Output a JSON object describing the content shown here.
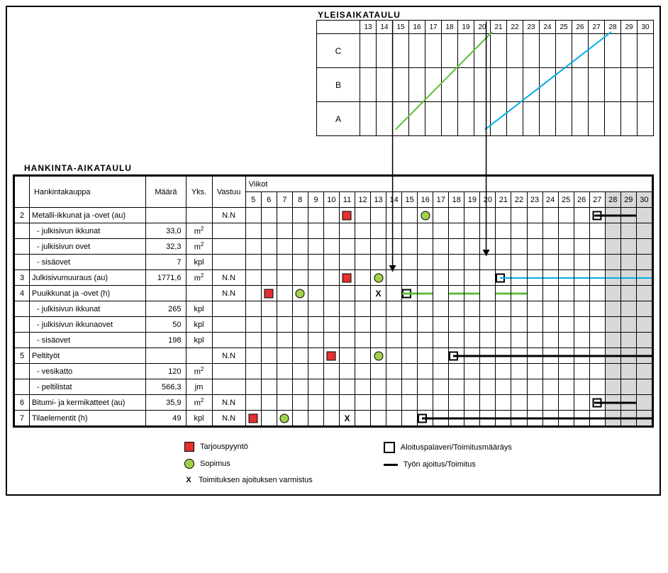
{
  "yleisaikataulu": {
    "title": "YLEISAIKATAULU",
    "weeks": [
      13,
      14,
      15,
      16,
      17,
      18,
      19,
      20,
      21,
      22,
      23,
      24,
      25,
      26,
      27,
      28,
      29,
      30
    ],
    "rows": [
      "C",
      "B",
      "A"
    ],
    "lines": [
      {
        "type": "green",
        "points": [
          [
            15.5,
            2
          ],
          [
            22,
            0
          ]
        ],
        "stroke": "#5bbf3c",
        "width": 2
      },
      {
        "type": "cyan",
        "points": [
          [
            21.5,
            2
          ],
          [
            30,
            0
          ]
        ],
        "stroke": "#00aee6",
        "width": 2
      }
    ],
    "weekStartOffset": 13
  },
  "hankinta": {
    "title": "HANKINTA-AIKATAULU",
    "headers": {
      "hankintakauppa": "Hankintakauppa",
      "maara": "Määrä",
      "yks": "Yks.",
      "vastuu": "Vastuu",
      "viikot": "Viikot"
    },
    "weeks": [
      5,
      6,
      7,
      8,
      9,
      10,
      11,
      12,
      13,
      14,
      15,
      16,
      17,
      18,
      19,
      20,
      21,
      22,
      23,
      24,
      25,
      26,
      27,
      28,
      29,
      30
    ],
    "shadedWeeks": [
      28,
      29,
      30
    ],
    "rows": [
      {
        "id": "2",
        "label": "Metalli-ikkunat ja -ovet (au)",
        "maara": "",
        "yks": "",
        "vastuu": "N.N",
        "markers": [
          {
            "wk": 11,
            "t": "red"
          },
          {
            "wk": 16,
            "t": "green"
          },
          {
            "wk": 27,
            "t": "hollow"
          }
        ],
        "bars": [
          {
            "from": 27,
            "to": 29
          }
        ]
      },
      {
        "label": "- julkisivun ikkunat",
        "maara": "33,0",
        "yks": "m2"
      },
      {
        "label": "- julkisivun ovet",
        "maara": "32,3",
        "yks": "m2"
      },
      {
        "label": "- sisäovet",
        "maara": "7",
        "yks": "kpl"
      },
      {
        "id": "3",
        "label": "Julkisivumuuraus (au)",
        "maara": "1771,6",
        "yks": "m2",
        "vastuu": "N.N",
        "markers": [
          {
            "wk": 11,
            "t": "red"
          },
          {
            "wk": 13,
            "t": "green"
          },
          {
            "wk": 21,
            "t": "hollow-left"
          }
        ],
        "cyan": [
          {
            "from": 21,
            "to": 30
          }
        ]
      },
      {
        "id": "4",
        "label": "Puuikkunat ja -ovet (h)",
        "maara": "",
        "yks": "",
        "vastuu": "N.N",
        "markers": [
          {
            "wk": 6,
            "t": "red"
          },
          {
            "wk": 8,
            "t": "green"
          },
          {
            "wk": 13,
            "t": "x"
          },
          {
            "wk": 15,
            "t": "hollow-left"
          }
        ],
        "greendash": [
          {
            "from": 15,
            "to": 16
          },
          {
            "from": 18,
            "to": 19
          },
          {
            "from": 21,
            "to": 22
          }
        ]
      },
      {
        "label": "- julkisivun ikkunat",
        "maara": "265",
        "yks": "kpl"
      },
      {
        "label": "- julkisivun ikkunaovet",
        "maara": "50",
        "yks": "kpl"
      },
      {
        "label": "- sisäovet",
        "maara": "198",
        "yks": "kpl"
      },
      {
        "id": "5",
        "label": "Peltityöt",
        "maara": "",
        "yks": "",
        "vastuu": "N.N",
        "markers": [
          {
            "wk": 10,
            "t": "red"
          },
          {
            "wk": 13,
            "t": "green"
          },
          {
            "wk": 18,
            "t": "hollow-left"
          }
        ],
        "bars": [
          {
            "from": 18,
            "to": 30
          }
        ]
      },
      {
        "label": "- vesikatto",
        "maara": "120",
        "yks": "m2"
      },
      {
        "label": "- peltilistat",
        "maara": "566,3",
        "yks": "jm"
      },
      {
        "id": "6",
        "label": "Bitumi- ja kermikatteet (au)",
        "maara": "35,9",
        "yks": "m2",
        "vastuu": "N.N",
        "markers": [
          {
            "wk": 27,
            "t": "hollow"
          }
        ],
        "bars": [
          {
            "from": 27,
            "to": 29
          }
        ]
      },
      {
        "id": "7",
        "label": "Tilaelementit (h)",
        "maara": "49",
        "yks": "kpl",
        "vastuu": "N.N",
        "markers": [
          {
            "wk": 5,
            "t": "red"
          },
          {
            "wk": 7,
            "t": "green"
          },
          {
            "wk": 11,
            "t": "x"
          },
          {
            "wk": 16,
            "t": "hollow-left"
          }
        ],
        "bars": [
          {
            "from": 16,
            "to": 30
          }
        ]
      }
    ]
  },
  "legend": {
    "tarjouspyynto": "Tarjouspyyntö",
    "sopimus": "Sopimus",
    "toimitus_varmistus": "Toimituksen ajoituksen varmistus",
    "aloituspalaveri": "Aloituspalaveri/Toimitusmääräys",
    "tyon_ajoitus": "Työn ajoitus/Toimitus"
  },
  "colors": {
    "red": "#e43030",
    "green_fill": "#a2d149",
    "green_line": "#5bbf3c",
    "cyan": "#00aee6",
    "shade": "#d8d8d8"
  },
  "arrows_note": "Two vertical arrows connect YLEISAIKATAULU lines to HANKINTA rows at weeks ~15 and ~21"
}
